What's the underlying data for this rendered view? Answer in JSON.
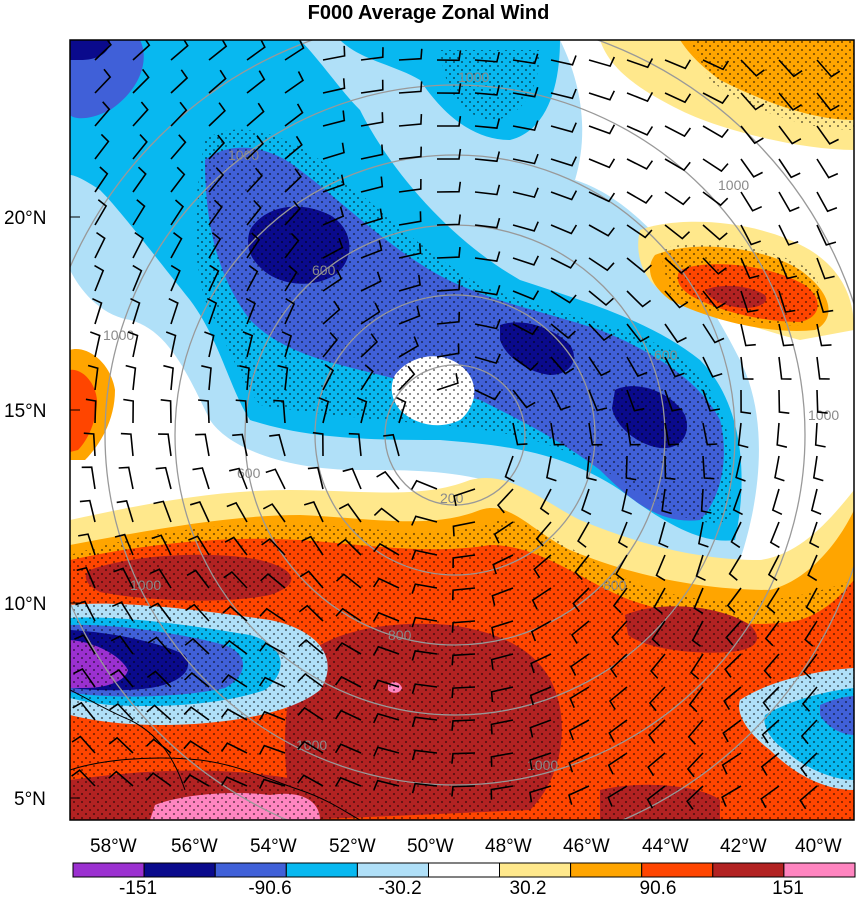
{
  "title": "F000 Average Zonal Wind",
  "axes": {
    "x_ticks": [
      "58°W",
      "56°W",
      "54°W",
      "52°W",
      "50°W",
      "48°W",
      "46°W",
      "44°W",
      "42°W",
      "40°W"
    ],
    "y_ticks": [
      "20°N",
      "15°N",
      "10°N",
      "5°N"
    ]
  },
  "range_ring_labels": [
    "200",
    "600",
    "1000"
  ],
  "colorbar": {
    "colors": [
      "#9b30d0",
      "#0a0a8c",
      "#4060d8",
      "#08b8f0",
      "#b0e0f8",
      "#ffffff",
      "#ffe88c",
      "#ffa500",
      "#ff4500",
      "#b22222",
      "#ff85c0"
    ],
    "labels": [
      "-151",
      "-90.6",
      "-30.2",
      "30.2",
      "90.6",
      "151"
    ]
  },
  "chart_data": {
    "type": "heatmap",
    "title": "F000 Average Zonal Wind",
    "x_range": [
      "59°W",
      "39°W"
    ],
    "y_range": [
      "4.5°N",
      "24.5°N"
    ],
    "color_levels": [
      -151,
      -120.8,
      -90.6,
      -60.4,
      -30.2,
      0,
      30.2,
      60.4,
      90.6,
      120.8,
      151
    ],
    "range_rings": [
      200,
      600,
      1000
    ],
    "features": [
      {
        "name": "negative band NW",
        "sign": "negative",
        "peak": -120
      },
      {
        "name": "negative core near 54°W 19°N",
        "sign": "negative",
        "peak": -120
      },
      {
        "name": "negative core near 45°W 15°N",
        "sign": "negative",
        "peak": -120
      },
      {
        "name": "positive band 10°N",
        "sign": "positive",
        "peak": 151
      },
      {
        "name": "positive core near 42°W 18°N",
        "sign": "positive",
        "peak": 140
      },
      {
        "name": "negative core near 58°W 8°N",
        "sign": "negative",
        "peak": -151
      }
    ]
  }
}
